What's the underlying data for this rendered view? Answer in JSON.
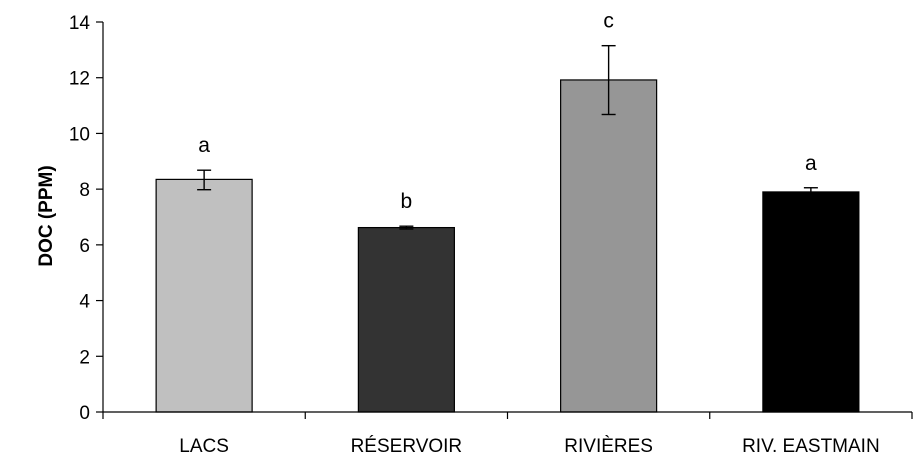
{
  "chart_data": {
    "type": "bar",
    "categories": [
      "LACS",
      "RÉSERVOIR",
      "RIVIÈRES",
      "RIV. EASTMAIN"
    ],
    "values": [
      8.35,
      6.62,
      11.92,
      7.9
    ],
    "error_upper": [
      8.68,
      6.67,
      13.15,
      8.05
    ],
    "error_lower": [
      7.98,
      6.57,
      10.68,
      7.78
    ],
    "significance_letters": [
      "a",
      "b",
      "c",
      "a"
    ],
    "bar_colors": [
      "#c0c0c0",
      "#333333",
      "#969696",
      "#000000"
    ],
    "ylabel": "DOC (PPM)",
    "xlabel": "",
    "ylim": [
      0,
      14
    ],
    "yticks": [
      0,
      2,
      4,
      6,
      8,
      10,
      12,
      14
    ],
    "grid": false,
    "legend": "none"
  }
}
